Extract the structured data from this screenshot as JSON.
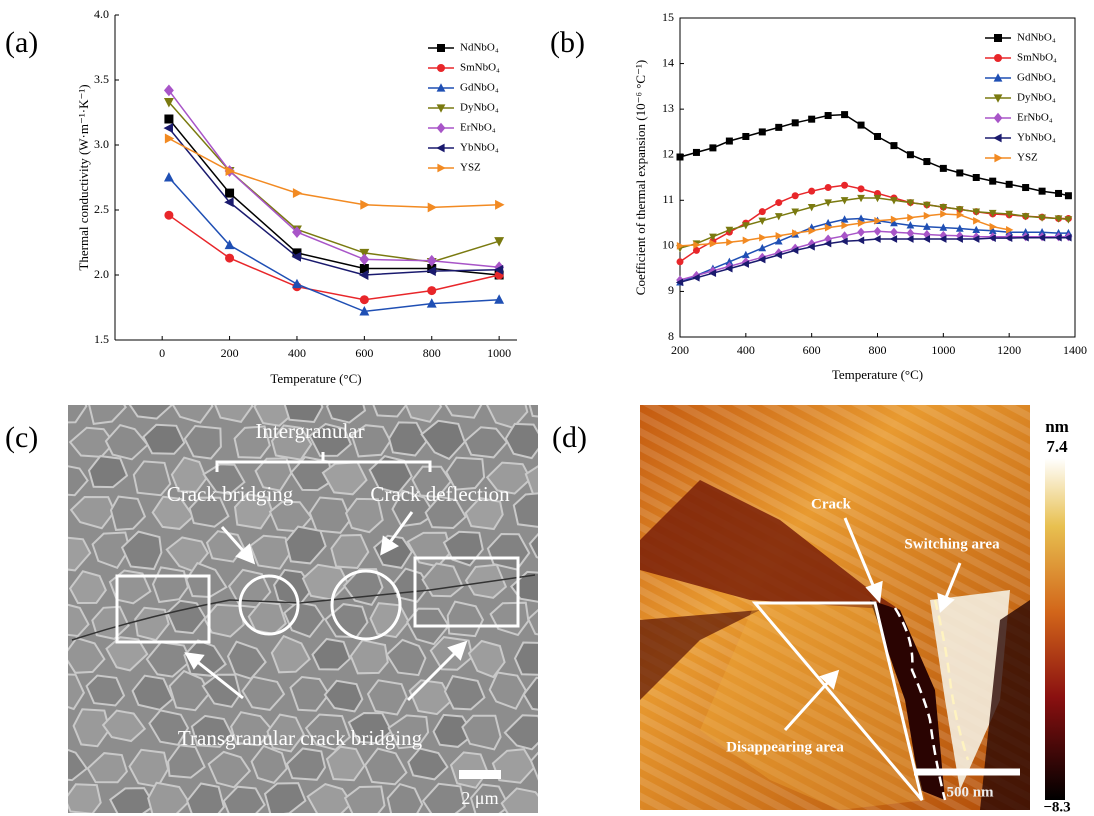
{
  "chart_data": [
    {
      "type": "line",
      "panel_label": "(a)",
      "x_label": "Temperature (°C)",
      "y_label": "Thermal conductivity (W·m⁻¹·K⁻¹)",
      "x": [
        20,
        200,
        400,
        600,
        800,
        1000
      ],
      "xlim": [
        -140,
        1053
      ],
      "xticks": [
        0,
        200,
        400,
        600,
        800,
        1000
      ],
      "ylim": [
        1.5,
        4.0
      ],
      "yticks": [
        1.5,
        {
          "value": 2,
          "label": "2.0"
        },
        2.5,
        {
          "value": 3,
          "label": "3.0"
        },
        3.5,
        {
          "value": 4,
          "label": "4.0"
        }
      ],
      "series": [
        {
          "name": "NdNbO₄",
          "color": "#000000",
          "marker": "square",
          "values": [
            3.2,
            2.63,
            2.17,
            2.05,
            2.05,
            2.0
          ]
        },
        {
          "name": "SmNbO₄",
          "color": "#e8262a",
          "marker": "circle",
          "values": [
            2.46,
            2.13,
            1.91,
            1.81,
            1.88,
            2.0
          ]
        },
        {
          "name": "GdNbO₄",
          "color": "#1f4fb4",
          "marker": "tri-up",
          "values": [
            2.75,
            2.23,
            1.93,
            1.72,
            1.78,
            1.81
          ]
        },
        {
          "name": "DyNbO₄",
          "color": "#7a7a10",
          "marker": "tri-down",
          "values": [
            3.33,
            2.8,
            2.35,
            2.17,
            2.1,
            2.26
          ]
        },
        {
          "name": "ErNbO₄",
          "color": "#a855c8",
          "marker": "diamond",
          "values": [
            3.42,
            2.8,
            2.33,
            2.12,
            2.11,
            2.06
          ]
        },
        {
          "name": "YbNbO₄",
          "color": "#1a1a6e",
          "marker": "tri-left",
          "values": [
            3.13,
            2.56,
            2.14,
            2.0,
            2.03,
            2.04
          ]
        },
        {
          "name": "YSZ",
          "color": "#f28a22",
          "marker": "tri-right",
          "values": [
            3.05,
            2.8,
            2.63,
            2.54,
            2.52,
            2.54
          ]
        }
      ]
    },
    {
      "type": "line",
      "panel_label": "(b)",
      "x_label": "Temperature (°C)",
      "y_label": "Coefficient of thermal expansion (10⁻⁶ °C⁻¹)",
      "x": [
        200,
        250,
        300,
        350,
        400,
        450,
        500,
        550,
        600,
        650,
        700,
        750,
        800,
        850,
        900,
        950,
        1000,
        1050,
        1100,
        1150,
        1200,
        1250,
        1300,
        1350,
        1380
      ],
      "xlim": [
        200,
        1400
      ],
      "xticks": [
        200,
        400,
        600,
        800,
        1000,
        1200,
        1400
      ],
      "ylim": [
        8,
        15
      ],
      "yticks": [
        8,
        9,
        10,
        11,
        12,
        13,
        14,
        15
      ],
      "series": [
        {
          "name": "NdNbO₄",
          "color": "#000000",
          "marker": "square",
          "values": [
            11.95,
            12.05,
            12.15,
            12.3,
            12.4,
            12.5,
            12.6,
            12.7,
            12.78,
            12.86,
            12.88,
            12.65,
            12.4,
            12.2,
            12.0,
            11.85,
            11.7,
            11.6,
            11.5,
            11.42,
            11.35,
            11.28,
            11.2,
            11.15,
            11.1
          ]
        },
        {
          "name": "SmNbO₄",
          "color": "#e8262a",
          "marker": "circle",
          "values": [
            9.65,
            9.9,
            10.1,
            10.3,
            10.5,
            10.75,
            10.95,
            11.1,
            11.2,
            11.28,
            11.33,
            11.25,
            11.15,
            11.05,
            10.95,
            10.9,
            10.85,
            10.8,
            10.75,
            10.7,
            10.68,
            10.65,
            10.63,
            10.6,
            10.6
          ]
        },
        {
          "name": "GdNbO₄",
          "color": "#1f4fb4",
          "marker": "tri-up",
          "values": [
            9.2,
            9.35,
            9.5,
            9.65,
            9.8,
            9.95,
            10.1,
            10.25,
            10.4,
            10.5,
            10.58,
            10.6,
            10.55,
            10.5,
            10.45,
            10.42,
            10.4,
            10.38,
            10.35,
            10.33,
            10.3,
            10.3,
            10.3,
            10.28,
            10.28
          ]
        },
        {
          "name": "DyNbO₄",
          "color": "#7a7a10",
          "marker": "tri-down",
          "values": [
            9.95,
            10.05,
            10.2,
            10.35,
            10.45,
            10.55,
            10.65,
            10.75,
            10.85,
            10.95,
            11.0,
            11.05,
            11.05,
            11.0,
            10.95,
            10.9,
            10.85,
            10.8,
            10.75,
            10.72,
            10.7,
            10.65,
            10.62,
            10.6,
            10.58
          ]
        },
        {
          "name": "ErNbO₄",
          "color": "#a855c8",
          "marker": "diamond",
          "values": [
            9.25,
            9.35,
            9.45,
            9.55,
            9.65,
            9.75,
            9.85,
            9.95,
            10.05,
            10.15,
            10.22,
            10.3,
            10.32,
            10.3,
            10.28,
            10.25,
            10.23,
            10.22,
            10.2,
            10.2,
            10.2,
            10.2,
            10.2,
            10.2,
            10.2
          ]
        },
        {
          "name": "YbNbO₄",
          "color": "#1a1a6e",
          "marker": "tri-left",
          "values": [
            9.2,
            9.3,
            9.4,
            9.5,
            9.6,
            9.7,
            9.8,
            9.9,
            9.98,
            10.05,
            10.1,
            10.12,
            10.15,
            10.15,
            10.15,
            10.15,
            10.15,
            10.15,
            10.15,
            10.17,
            10.17,
            10.18,
            10.18,
            10.18,
            10.18
          ]
        },
        {
          "name": "YSZ",
          "color": "#f28a22",
          "marker": "tri-right",
          "values": [
            10.0,
            10.02,
            10.05,
            10.08,
            10.12,
            10.18,
            10.22,
            10.28,
            10.33,
            10.4,
            10.45,
            10.5,
            10.55,
            10.58,
            10.62,
            10.66,
            10.7,
            10.68,
            10.55,
            10.42,
            10.35,
            null,
            null,
            null,
            null
          ]
        }
      ]
    }
  ],
  "figure_c": {
    "label": "(c)",
    "title": "Intergranular",
    "annotations": [
      "Crack bridging",
      "Crack deflection",
      "Transgranular crack bridging"
    ],
    "scale_bar": "2 μm"
  },
  "figure_d": {
    "label": "(d)",
    "annotations": [
      "Crack",
      "Switching area",
      "Disappearing area"
    ],
    "scale_bar": "500 nm",
    "colorbar": {
      "unit": "nm",
      "max": "7.4",
      "min": "−8.3"
    }
  }
}
